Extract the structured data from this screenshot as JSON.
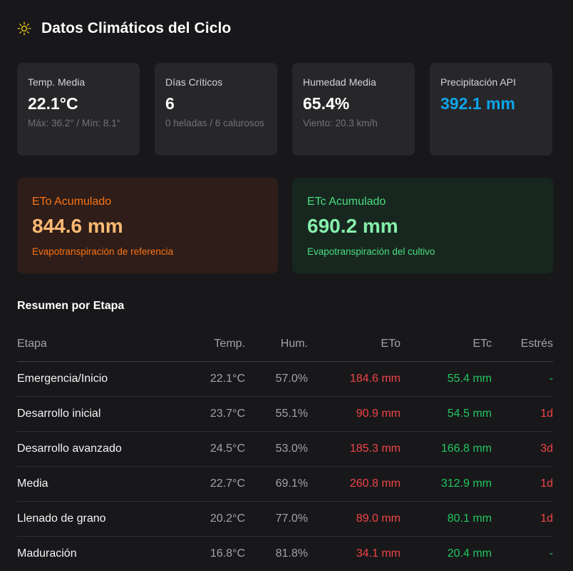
{
  "header": {
    "title": "Datos Climáticos del Ciclo",
    "icon": "sun-icon"
  },
  "stats": [
    {
      "label": "Temp. Media",
      "value": "22.1°C",
      "sub": "Máx: 36.2° / Mín: 8.1°"
    },
    {
      "label": "Días Críticos",
      "value": "6",
      "sub": "0 heladas / 6 calurosos"
    },
    {
      "label": "Humedad Media",
      "value": "65.4%",
      "sub": "Viento: 20.3 km/h"
    },
    {
      "label": "Precipitación API",
      "value": "392.1 mm",
      "sub": ""
    }
  ],
  "eto": {
    "label": "ETo Acumulado",
    "value": "844.6 mm",
    "sub": "Evapotranspiración de referencia"
  },
  "etc": {
    "label": "ETc Acumulado",
    "value": "690.2 mm",
    "sub": "Evapotranspiración del cultivo"
  },
  "summary": {
    "title": "Resumen por Etapa",
    "columns": [
      "Etapa",
      "Temp.",
      "Hum.",
      "ETo",
      "ETc",
      "Estrés"
    ],
    "rows": [
      {
        "stage": "Emergencia/Inicio",
        "temp": "22.1°C",
        "hum": "57.0%",
        "eto": "184.6 mm",
        "etc": "55.4 mm",
        "stress": "-"
      },
      {
        "stage": "Desarrollo inicial",
        "temp": "23.7°C",
        "hum": "55.1%",
        "eto": "90.9 mm",
        "etc": "54.5 mm",
        "stress": "1d"
      },
      {
        "stage": "Desarrollo avanzado",
        "temp": "24.5°C",
        "hum": "53.0%",
        "eto": "185.3 mm",
        "etc": "166.8 mm",
        "stress": "3d"
      },
      {
        "stage": "Media",
        "temp": "22.7°C",
        "hum": "69.1%",
        "eto": "260.8 mm",
        "etc": "312.9 mm",
        "stress": "1d"
      },
      {
        "stage": "Llenado de grano",
        "temp": "20.2°C",
        "hum": "77.0%",
        "eto": "89.0 mm",
        "etc": "80.1 mm",
        "stress": "1d"
      },
      {
        "stage": "Maduración",
        "temp": "16.8°C",
        "hum": "81.8%",
        "eto": "34.1 mm",
        "etc": "20.4 mm",
        "stress": "-"
      }
    ]
  },
  "colors": {
    "background": "#18181b",
    "card": "#27272a",
    "precip_accent": "#0ea5e9",
    "eto_accent": "#f97316",
    "etc_accent": "#22c55e",
    "stress_red": "#ef4444",
    "sun_icon": "#facc15"
  }
}
